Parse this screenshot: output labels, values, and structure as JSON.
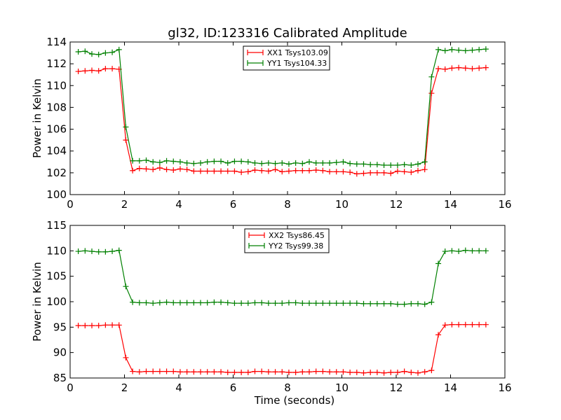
{
  "title": "gl32, ID:123316 Calibrated Amplitude",
  "chart_data": [
    {
      "type": "line",
      "title": "gl32, ID:123316 Calibrated Amplitude",
      "xlabel": "",
      "ylabel": "Power in Kelvin",
      "xlim": [
        0,
        16
      ],
      "ylim": [
        100,
        114
      ],
      "xticks": [
        0,
        2,
        4,
        6,
        8,
        10,
        12,
        14,
        16
      ],
      "yticks": [
        100,
        102,
        104,
        106,
        108,
        110,
        112,
        114
      ],
      "grid": false,
      "legend_position": "upper-center",
      "series": [
        {
          "name": "XX1 Tsys103.09",
          "color": "#ff0000",
          "x": [
            0.3,
            0.55,
            0.8,
            1.05,
            1.3,
            1.55,
            1.8,
            2.05,
            2.3,
            2.55,
            2.8,
            3.05,
            3.3,
            3.55,
            3.8,
            4.05,
            4.3,
            4.55,
            4.8,
            5.05,
            5.3,
            5.55,
            5.8,
            6.05,
            6.3,
            6.55,
            6.8,
            7.05,
            7.3,
            7.55,
            7.8,
            8.05,
            8.3,
            8.55,
            8.8,
            9.05,
            9.3,
            9.55,
            9.8,
            10.05,
            10.3,
            10.55,
            10.8,
            11.05,
            11.3,
            11.55,
            11.8,
            12.05,
            12.3,
            12.55,
            12.8,
            13.05,
            13.3,
            13.55,
            13.8,
            14.05,
            14.3,
            14.55,
            14.8,
            15.05,
            15.3
          ],
          "y": [
            111.3,
            111.35,
            111.4,
            111.35,
            111.55,
            111.55,
            111.5,
            105.0,
            102.2,
            102.4,
            102.35,
            102.3,
            102.45,
            102.3,
            102.25,
            102.35,
            102.3,
            102.15,
            102.15,
            102.15,
            102.15,
            102.15,
            102.15,
            102.15,
            102.05,
            102.1,
            102.25,
            102.2,
            102.15,
            102.3,
            102.1,
            102.15,
            102.2,
            102.2,
            102.2,
            102.25,
            102.2,
            102.1,
            102.1,
            102.1,
            102.05,
            101.9,
            101.95,
            102.0,
            102.0,
            102.0,
            101.95,
            102.15,
            102.1,
            102.05,
            102.2,
            102.3,
            109.3,
            111.55,
            111.5,
            111.6,
            111.65,
            111.6,
            111.55,
            111.6,
            111.65
          ]
        },
        {
          "name": "YY1 Tsys104.33",
          "color": "#008000",
          "x": [
            0.3,
            0.55,
            0.8,
            1.05,
            1.3,
            1.55,
            1.8,
            2.05,
            2.3,
            2.55,
            2.8,
            3.05,
            3.3,
            3.55,
            3.8,
            4.05,
            4.3,
            4.55,
            4.8,
            5.05,
            5.3,
            5.55,
            5.8,
            6.05,
            6.3,
            6.55,
            6.8,
            7.05,
            7.3,
            7.55,
            7.8,
            8.05,
            8.3,
            8.55,
            8.8,
            9.05,
            9.3,
            9.55,
            9.8,
            10.05,
            10.3,
            10.55,
            10.8,
            11.05,
            11.3,
            11.55,
            11.8,
            12.05,
            12.3,
            12.55,
            12.8,
            13.05,
            13.3,
            13.55,
            13.8,
            14.05,
            14.3,
            14.55,
            14.8,
            15.05,
            15.3
          ],
          "y": [
            113.1,
            113.15,
            112.9,
            112.85,
            113.0,
            113.05,
            113.3,
            106.2,
            103.1,
            103.1,
            103.15,
            103.0,
            102.95,
            103.1,
            103.05,
            103.0,
            102.9,
            102.85,
            102.9,
            103.0,
            103.05,
            103.05,
            102.9,
            103.05,
            103.05,
            103.0,
            102.9,
            102.85,
            102.9,
            102.85,
            102.9,
            102.8,
            102.9,
            102.85,
            103.0,
            102.9,
            102.9,
            102.9,
            102.95,
            103.0,
            102.85,
            102.8,
            102.8,
            102.75,
            102.75,
            102.7,
            102.7,
            102.7,
            102.75,
            102.7,
            102.8,
            103.0,
            110.8,
            113.3,
            113.2,
            113.3,
            113.25,
            113.2,
            113.25,
            113.3,
            113.35
          ]
        }
      ]
    },
    {
      "type": "line",
      "title": "",
      "xlabel": "Time (seconds)",
      "ylabel": "Power in Kelvin",
      "xlim": [
        0,
        16
      ],
      "ylim": [
        85,
        115
      ],
      "xticks": [
        0,
        2,
        4,
        6,
        8,
        10,
        12,
        14,
        16
      ],
      "yticks": [
        85,
        90,
        95,
        100,
        105,
        110,
        115
      ],
      "grid": false,
      "legend_position": "upper-center",
      "series": [
        {
          "name": "XX2 Tsys86.45",
          "color": "#ff0000",
          "x": [
            0.3,
            0.55,
            0.8,
            1.05,
            1.3,
            1.55,
            1.8,
            2.05,
            2.3,
            2.55,
            2.8,
            3.05,
            3.3,
            3.55,
            3.8,
            4.05,
            4.3,
            4.55,
            4.8,
            5.05,
            5.3,
            5.55,
            5.8,
            6.05,
            6.3,
            6.55,
            6.8,
            7.05,
            7.3,
            7.55,
            7.8,
            8.05,
            8.3,
            8.55,
            8.8,
            9.05,
            9.3,
            9.55,
            9.8,
            10.05,
            10.3,
            10.55,
            10.8,
            11.05,
            11.3,
            11.55,
            11.8,
            12.05,
            12.3,
            12.55,
            12.8,
            13.05,
            13.3,
            13.55,
            13.8,
            14.05,
            14.3,
            14.55,
            14.8,
            15.05,
            15.3
          ],
          "y": [
            95.3,
            95.3,
            95.3,
            95.3,
            95.4,
            95.4,
            95.4,
            89.0,
            86.3,
            86.2,
            86.3,
            86.3,
            86.3,
            86.3,
            86.3,
            86.2,
            86.2,
            86.2,
            86.2,
            86.2,
            86.2,
            86.2,
            86.1,
            86.1,
            86.1,
            86.1,
            86.3,
            86.3,
            86.2,
            86.2,
            86.2,
            86.1,
            86.1,
            86.2,
            86.2,
            86.3,
            86.3,
            86.2,
            86.2,
            86.2,
            86.1,
            86.1,
            86.0,
            86.1,
            86.1,
            86.0,
            86.1,
            86.1,
            86.3,
            86.1,
            86.0,
            86.2,
            86.5,
            93.5,
            95.4,
            95.5,
            95.5,
            95.5,
            95.5,
            95.5,
            95.5
          ]
        },
        {
          "name": "YY2 Tsys99.38",
          "color": "#008000",
          "x": [
            0.3,
            0.55,
            0.8,
            1.05,
            1.3,
            1.55,
            1.8,
            2.05,
            2.3,
            2.55,
            2.8,
            3.05,
            3.3,
            3.55,
            3.8,
            4.05,
            4.3,
            4.55,
            4.8,
            5.05,
            5.3,
            5.55,
            5.8,
            6.05,
            6.3,
            6.55,
            6.8,
            7.05,
            7.3,
            7.55,
            7.8,
            8.05,
            8.3,
            8.55,
            8.8,
            9.05,
            9.3,
            9.55,
            9.8,
            10.05,
            10.3,
            10.55,
            10.8,
            11.05,
            11.3,
            11.55,
            11.8,
            12.05,
            12.3,
            12.55,
            12.8,
            13.05,
            13.3,
            13.55,
            13.8,
            14.05,
            14.3,
            14.55,
            14.8,
            15.05,
            15.3
          ],
          "y": [
            109.9,
            110.0,
            109.9,
            109.8,
            109.8,
            109.9,
            110.1,
            103.0,
            99.9,
            99.8,
            99.8,
            99.7,
            99.8,
            99.9,
            99.8,
            99.8,
            99.8,
            99.8,
            99.8,
            99.8,
            99.9,
            99.9,
            99.8,
            99.7,
            99.7,
            99.7,
            99.8,
            99.8,
            99.7,
            99.7,
            99.7,
            99.8,
            99.8,
            99.7,
            99.7,
            99.7,
            99.7,
            99.7,
            99.7,
            99.7,
            99.7,
            99.7,
            99.6,
            99.6,
            99.6,
            99.6,
            99.6,
            99.5,
            99.5,
            99.6,
            99.6,
            99.5,
            99.9,
            107.5,
            109.9,
            110.0,
            109.9,
            110.1,
            110.0,
            110.0,
            110.0
          ]
        }
      ]
    }
  ]
}
